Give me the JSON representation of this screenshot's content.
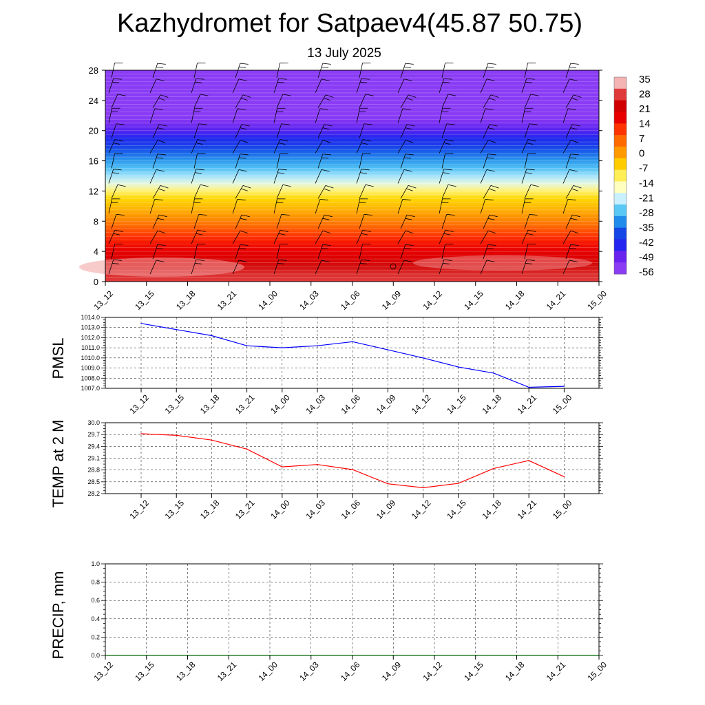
{
  "title": "Kazhydromet for Satpaev4(45.87 50.75)",
  "subtitle": "13 July 2025",
  "time_labels": [
    "13_12",
    "13_15",
    "13_18",
    "13_21",
    "14_00",
    "14_03",
    "14_06",
    "14_09",
    "14_12",
    "14_15",
    "14_18",
    "14_21",
    "15_00"
  ],
  "colorbar": {
    "labels": [
      "35",
      "28",
      "21",
      "14",
      "7",
      "0",
      "-7",
      "-14",
      "-21",
      "-28",
      "-35",
      "-42",
      "-49",
      "-56"
    ],
    "colors_top_to_bottom": [
      "#f4b3b3",
      "#e03a3a",
      "#d00000",
      "#e80000",
      "#ff3300",
      "#ff6a00",
      "#ff9900",
      "#ffcc00",
      "#ffee55",
      "#ffffc0",
      "#c8f0ff",
      "#5ac8f5",
      "#1f8cec",
      "#1546e6",
      "#2424f0",
      "#6a22ee",
      "#8a3cf5"
    ]
  },
  "chart_data": [
    {
      "type": "heatmap",
      "name": "cross-section",
      "x": [
        "13_12",
        "13_15",
        "13_18",
        "13_21",
        "14_00",
        "14_03",
        "14_06",
        "14_09",
        "14_12",
        "14_15",
        "14_18",
        "14_21",
        "15_00"
      ],
      "ylim": [
        0,
        28
      ],
      "yticks": [
        0,
        4,
        8,
        12,
        16,
        20,
        24,
        28
      ],
      "levels": [
        0,
        1,
        2,
        3,
        4,
        5,
        6,
        7,
        8,
        9,
        10,
        11,
        12,
        13,
        14,
        15,
        16,
        17,
        18,
        19,
        20,
        21,
        22,
        23,
        24,
        25,
        26,
        27,
        28
      ],
      "values_by_level": [
        30,
        29,
        27,
        24,
        22,
        18,
        14,
        10,
        6,
        2,
        -2,
        -6,
        -10,
        -14,
        -18,
        -23,
        -28,
        -34,
        -40,
        -45,
        -50,
        -54,
        -56,
        -56,
        -56,
        -56,
        -56,
        -56,
        -56
      ],
      "colorbar_range": [
        -56,
        35
      ],
      "wind_barbs": true
    },
    {
      "type": "line",
      "name": "pmsl",
      "ylabel": "PMSL",
      "ylim": [
        1007.0,
        1014.0
      ],
      "yticks": [
        "1007.0",
        "1008.0",
        "1009.0",
        "1010.0",
        "1011.0",
        "1012.0",
        "1013.0",
        "1014.0"
      ],
      "x": [
        "13_12",
        "13_15",
        "13_18",
        "13_21",
        "14_00",
        "14_03",
        "14_06",
        "14_09",
        "14_12",
        "14_15",
        "14_18",
        "14_21",
        "15_00"
      ],
      "values": [
        1013.4,
        1012.8,
        1012.2,
        1011.2,
        1011.0,
        1011.2,
        1011.6,
        1010.8,
        1010.0,
        1009.1,
        1008.5,
        1007.1,
        1007.2
      ],
      "color": "#0000ff",
      "grid": true
    },
    {
      "type": "line",
      "name": "temp2m",
      "ylabel": "TEMP at 2 M",
      "ylim": [
        28.2,
        30.0
      ],
      "yticks": [
        "28.2",
        "28.5",
        "28.8",
        "29.1",
        "29.4",
        "29.7",
        "30.0"
      ],
      "x": [
        "13_12",
        "13_15",
        "13_18",
        "13_21",
        "14_00",
        "14_03",
        "14_06",
        "14_09",
        "14_12",
        "14_15",
        "14_18",
        "14_21",
        "15_00"
      ],
      "values": [
        29.72,
        29.68,
        29.56,
        29.33,
        28.88,
        28.94,
        28.81,
        28.45,
        28.35,
        28.46,
        28.84,
        29.04,
        28.63
      ],
      "color": "#ff0000",
      "grid": true
    },
    {
      "type": "line",
      "name": "precip",
      "ylabel": "PRECIP, mm",
      "ylim": [
        0.0,
        1.0
      ],
      "yticks": [
        "0.0",
        "0.2",
        "0.4",
        "0.6",
        "0.8",
        "1.0"
      ],
      "x": [
        "13_12",
        "13_15",
        "13_18",
        "13_21",
        "14_00",
        "14_03",
        "14_06",
        "14_09",
        "14_12",
        "14_15",
        "14_18",
        "14_21",
        "15_00"
      ],
      "values": [
        0,
        0,
        0,
        0,
        0,
        0,
        0,
        0,
        0,
        0,
        0,
        0,
        0
      ],
      "color": "#006400",
      "grid": true
    }
  ]
}
